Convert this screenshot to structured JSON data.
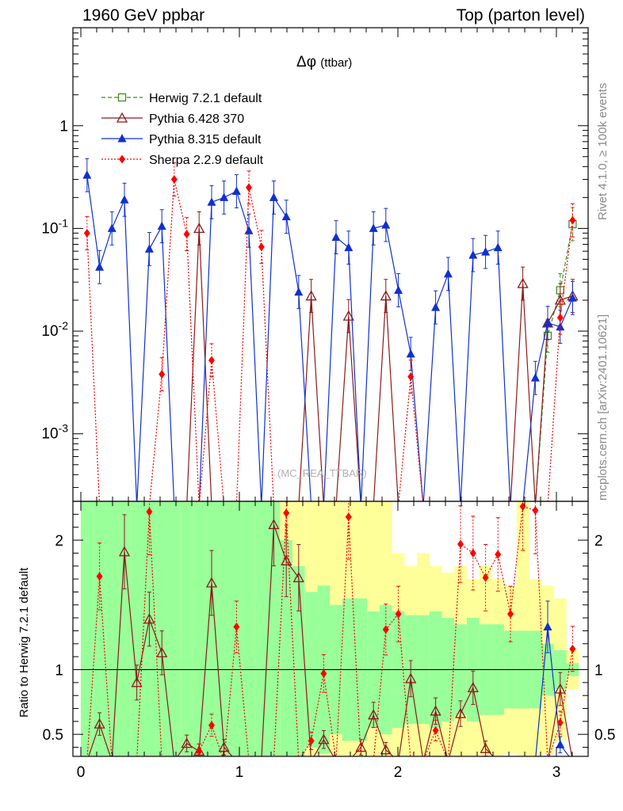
{
  "header": {
    "left": "1960 GeV ppbar",
    "right": "Top (parton level)"
  },
  "side_labels": {
    "rivet": "Rivet 4.1.0, ≥ 100k events",
    "mcplots": "mcplots.cern.ch [arXiv:2401.10621]"
  },
  "watermark": "(MC_REA_TTBAR)",
  "ratio_ylabel": "Ratio to Herwig 7.2.1 default",
  "colors": {
    "herwig": "#3f8f1f",
    "pythia6": "#8b1a1a",
    "pythia8": "#1030d0",
    "sherpa": "#ff0000",
    "band_inner": "#99ff99",
    "band_outer": "#ffff99"
  },
  "chart_data": [
    {
      "type": "line",
      "title": "Δφ (ttbar)",
      "title_main": "Δφ",
      "title_sub": "(ttbar)",
      "yscale": "log",
      "xlim": [
        -0.05,
        3.2
      ],
      "ylim": [
        0.00022,
        9
      ],
      "xlabel": "",
      "ylabel": "",
      "ytick_values": [
        0.001,
        0.01,
        0.1,
        1
      ],
      "ytick_labels": [
        "10^-3",
        "10^-2",
        "10^-1",
        "1"
      ],
      "legend_position": "top-left",
      "x": [
        0.039,
        0.118,
        0.196,
        0.275,
        0.353,
        0.432,
        0.511,
        0.589,
        0.668,
        0.746,
        0.825,
        0.903,
        0.982,
        1.06,
        1.139,
        1.217,
        1.296,
        1.374,
        1.453,
        1.532,
        1.61,
        1.689,
        1.767,
        1.846,
        1.924,
        2.003,
        2.081,
        2.16,
        2.238,
        2.317,
        2.395,
        2.474,
        2.553,
        2.631,
        2.71,
        2.788,
        2.867,
        2.945,
        3.024,
        3.102
      ],
      "series": [
        {
          "name": "Herwig 7.2.1 default",
          "values": [
            null,
            null,
            null,
            null,
            null,
            null,
            null,
            null,
            null,
            null,
            null,
            null,
            null,
            null,
            null,
            null,
            null,
            null,
            null,
            null,
            null,
            null,
            null,
            null,
            null,
            null,
            null,
            null,
            null,
            null,
            null,
            null,
            null,
            null,
            null,
            null,
            null,
            0.009,
            0.025,
            0.11
          ]
        },
        {
          "name": "Pythia 6.428 370",
          "values": [
            null,
            null,
            null,
            null,
            null,
            null,
            null,
            null,
            null,
            0.1,
            null,
            null,
            null,
            null,
            null,
            null,
            null,
            null,
            0.022,
            null,
            null,
            0.014,
            null,
            null,
            0.022,
            null,
            null,
            null,
            null,
            null,
            null,
            null,
            null,
            null,
            null,
            0.029,
            null,
            0.012,
            0.02,
            0.022
          ]
        },
        {
          "name": "Pythia 8.315 default",
          "values": [
            0.33,
            0.042,
            0.1,
            0.19,
            null,
            0.063,
            0.105,
            null,
            null,
            null,
            0.18,
            0.2,
            0.23,
            0.095,
            null,
            0.2,
            0.13,
            0.024,
            null,
            null,
            0.082,
            0.065,
            null,
            0.1,
            0.108,
            0.025,
            0.006,
            null,
            0.017,
            0.036,
            null,
            0.055,
            0.059,
            0.065,
            null,
            null,
            0.0035,
            0.012,
            0.011,
            0.021
          ]
        },
        {
          "name": "Sherpa 2.2.9 default",
          "values": [
            0.09,
            null,
            null,
            null,
            null,
            null,
            0.0038,
            0.3,
            0.088,
            null,
            0.0052,
            null,
            null,
            0.25,
            0.066,
            null,
            null,
            null,
            null,
            null,
            null,
            null,
            null,
            null,
            null,
            null,
            0.0036,
            null,
            null,
            null,
            null,
            null,
            null,
            null,
            null,
            null,
            null,
            null,
            0.0135,
            0.12
          ]
        }
      ]
    },
    {
      "type": "line",
      "title": "Ratio to Herwig 7.2.1 default",
      "ylabel": "Ratio to Herwig 7.2.1 default",
      "ylim": [
        0.33,
        2.3
      ],
      "ytick_values": [
        0.5,
        1,
        2
      ],
      "ytick_labels": [
        "0.5",
        "1",
        "2"
      ],
      "xtick_values": [
        0,
        1,
        2,
        3
      ],
      "xtick_labels": [
        "0",
        "1",
        "2",
        "3"
      ],
      "reference_line": 1,
      "x": [
        0.039,
        0.118,
        0.196,
        0.275,
        0.353,
        0.432,
        0.511,
        0.589,
        0.668,
        0.746,
        0.825,
        0.903,
        0.982,
        1.06,
        1.139,
        1.217,
        1.296,
        1.374,
        1.453,
        1.532,
        1.61,
        1.689,
        1.767,
        1.846,
        1.924,
        2.003,
        2.081,
        2.16,
        2.238,
        2.317,
        2.395,
        2.474,
        2.553,
        2.631,
        2.71,
        2.788,
        2.867,
        2.945,
        3.024,
        3.102
      ],
      "uncertainty_band_inner": [
        2.3,
        2.3,
        2.3,
        2.3,
        2.3,
        2.3,
        2.3,
        2.3,
        2.3,
        2.3,
        2.3,
        2.3,
        2.3,
        2.3,
        2.3,
        2.3,
        2.0,
        1.8,
        1.6,
        1.65,
        1.5,
        1.55,
        1.55,
        1.45,
        1.5,
        1.45,
        1.42,
        1.42,
        1.45,
        1.4,
        1.35,
        1.4,
        1.35,
        1.35,
        1.3,
        1.3,
        1.3,
        1.2,
        1.15,
        1.05
      ],
      "uncertainty_band_outer": [
        2.3,
        2.3,
        2.3,
        2.3,
        2.3,
        2.3,
        2.3,
        2.3,
        2.3,
        2.3,
        2.3,
        2.3,
        2.3,
        2.3,
        2.3,
        2.3,
        2.3,
        2.3,
        2.3,
        2.3,
        2.3,
        2.3,
        2.3,
        2.3,
        2.3,
        1.9,
        1.8,
        1.9,
        1.8,
        1.75,
        1.8,
        1.7,
        1.8,
        1.7,
        1.65,
        2.3,
        1.7,
        1.65,
        1.55,
        1.15
      ],
      "series": [
        {
          "name": "Pythia 6.428 370",
          "values": [
            null,
            0.58,
            null,
            1.91,
            0.9,
            1.39,
            1.13,
            null,
            0.43,
            0.37,
            1.67,
            0.4,
            null,
            null,
            null,
            2.12,
            1.84,
            1.71,
            null,
            0.46,
            null,
            null,
            0.4,
            0.65,
            0.38,
            null,
            0.93,
            null,
            0.68,
            null,
            0.66,
            0.86,
            0.39,
            null,
            null,
            null,
            null,
            null,
            0.85,
            null
          ]
        },
        {
          "name": "Pythia 8.315 default",
          "values": [
            null,
            null,
            null,
            null,
            null,
            null,
            null,
            null,
            null,
            null,
            null,
            null,
            null,
            null,
            null,
            null,
            null,
            null,
            null,
            null,
            null,
            null,
            null,
            null,
            null,
            null,
            null,
            null,
            null,
            null,
            null,
            null,
            null,
            null,
            null,
            null,
            null,
            1.33,
            0.42,
            null
          ]
        },
        {
          "name": "Sherpa 2.2.9 default",
          "values": [
            null,
            1.72,
            null,
            null,
            null,
            2.22,
            null,
            null,
            null,
            0.37,
            0.57,
            null,
            1.33,
            null,
            null,
            null,
            2.21,
            null,
            0.45,
            0.97,
            null,
            2.18,
            null,
            null,
            1.31,
            1.43,
            null,
            null,
            0.53,
            null,
            1.97,
            1.9,
            1.71,
            1.89,
            1.43,
            2.26,
            2.23,
            null,
            0.59,
            1.16
          ]
        }
      ]
    }
  ]
}
